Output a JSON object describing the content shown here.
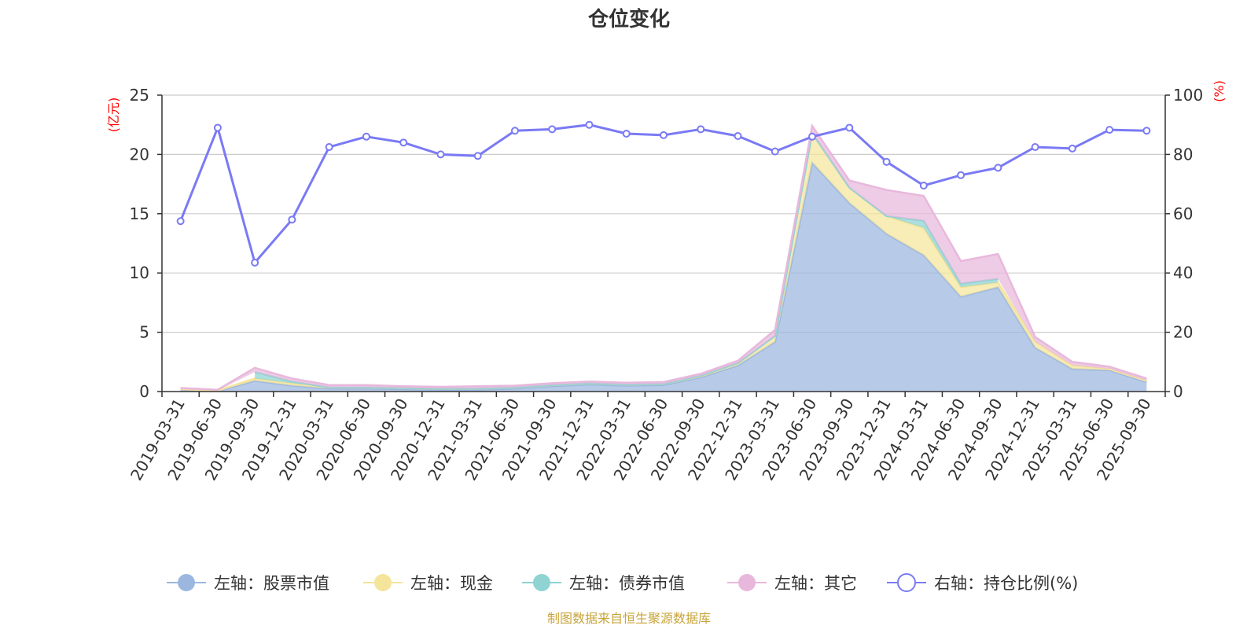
{
  "chart_data": {
    "type": "area",
    "title": "仓位变化",
    "categories": [
      "2019-03-31",
      "2019-06-30",
      "2019-09-30",
      "2019-12-31",
      "2020-03-31",
      "2020-06-30",
      "2020-09-30",
      "2020-12-31",
      "2021-03-31",
      "2021-06-30",
      "2021-09-30",
      "2021-12-31",
      "2022-03-31",
      "2022-06-30",
      "2022-09-30",
      "2022-12-31",
      "2023-03-31",
      "2023-06-30",
      "2023-09-30",
      "2023-12-31",
      "2024-03-31",
      "2024-06-30",
      "2024-09-30",
      "2024-12-31",
      "2025-03-31",
      "2025-06-30",
      "2025-09-30"
    ],
    "left_axis": {
      "unit": "(亿元)",
      "ylim": [
        0,
        25
      ],
      "ticks": [
        "0",
        "5",
        "10",
        "15",
        "20",
        "25"
      ]
    },
    "right_axis": {
      "unit": "(%)",
      "ylim": [
        0,
        100
      ],
      "ticks": [
        "0",
        "20",
        "40",
        "60",
        "80",
        "100"
      ]
    },
    "series": [
      {
        "name": "左轴：股票市值",
        "axis": "left",
        "kind": "stacked-area",
        "color": "#9bb7e0",
        "values": [
          0.15,
          0.05,
          0.9,
          0.5,
          0.25,
          0.25,
          0.2,
          0.15,
          0.15,
          0.25,
          0.45,
          0.6,
          0.5,
          0.55,
          1.2,
          2.2,
          4.2,
          19.3,
          15.9,
          13.3,
          11.5,
          8.0,
          8.8,
          3.7,
          1.9,
          1.8,
          0.8
        ]
      },
      {
        "name": "左轴：现金",
        "axis": "left",
        "kind": "stacked-area",
        "color": "#f5e49b",
        "values": [
          0.05,
          0.03,
          0.2,
          0.2,
          0.1,
          0.1,
          0.1,
          0.1,
          0.1,
          0.1,
          0.1,
          0.1,
          0.1,
          0.1,
          0.15,
          0.2,
          0.5,
          2.5,
          1.3,
          1.5,
          2.3,
          0.8,
          0.4,
          0.5,
          0.3,
          0.1,
          0.1
        ]
      },
      {
        "name": "左轴：债券市值",
        "axis": "left",
        "kind": "stacked-area",
        "color": "#8fd3d3",
        "values": [
          0,
          0,
          0.55,
          0.15,
          0,
          0,
          0,
          0,
          0,
          0,
          0,
          0,
          0,
          0,
          0,
          0,
          0,
          0,
          0,
          0,
          0.6,
          0.3,
          0.3,
          0,
          0,
          0,
          0
        ]
      },
      {
        "name": "左轴：其它",
        "axis": "left",
        "kind": "stacked-area",
        "color": "#e8b8dc",
        "values": [
          0.1,
          0.07,
          0.35,
          0.25,
          0.2,
          0.2,
          0.15,
          0.15,
          0.2,
          0.15,
          0.15,
          0.15,
          0.15,
          0.15,
          0.15,
          0.2,
          0.5,
          0.6,
          0.6,
          2.2,
          2.1,
          1.9,
          2.1,
          0.4,
          0.3,
          0.2,
          0.2
        ]
      },
      {
        "name": "右轴：持仓比例(%)",
        "axis": "right",
        "kind": "line",
        "color": "#7a7af5",
        "values": [
          57.5,
          89,
          43.5,
          58,
          82.5,
          86,
          84,
          80,
          79.5,
          88,
          88.5,
          90,
          87,
          86.5,
          88.5,
          86.2,
          81,
          86,
          89,
          77.5,
          69.5,
          73,
          75.5,
          82.5,
          82,
          88.3,
          88
        ]
      }
    ],
    "legend_position": "bottom",
    "grid": true,
    "source_note": "制图数据来自恒生聚源数据库"
  }
}
